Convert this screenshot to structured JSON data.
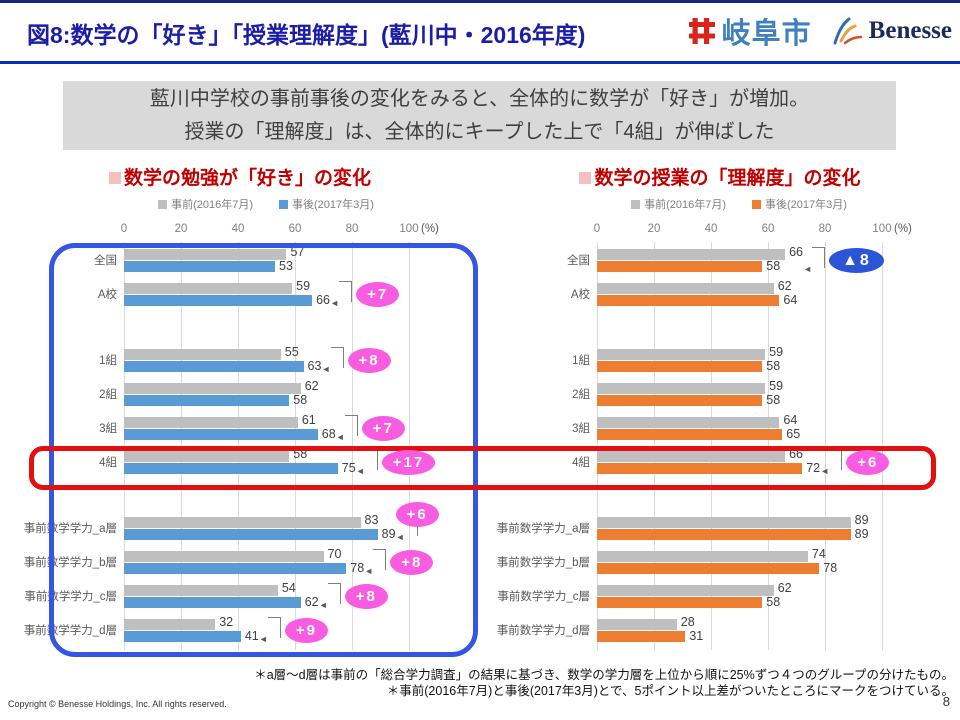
{
  "header": {
    "title": "図8:数学の「好き」「授業理解度」(藍川中・2016年度)",
    "logo_gifu": "岐阜市",
    "logo_benesse": "Benesse"
  },
  "summary": {
    "line1": "藍川中学校の事前事後の変化をみると、全体的に数学が「好き」が増加。",
    "line2": "授業の「理解度」は、全体的にキープした上で「4組」が伸ばした"
  },
  "footnotes": {
    "line1": "＊a層〜d層は事前の「総合学力調査」の結果に基づき、数学の学力層を上位から順に25%ずつ４つのグループの分けたもの。",
    "line2": "＊事前(2016年7月)と事後(2017年3月)とで、5ポイント以上差がついたところにマークをつけている。"
  },
  "page": {
    "copyright": "Copyright © Benesse Holdings, Inc. All rights reserved.",
    "number": "8"
  },
  "colors": {
    "heading_red": "#C00000",
    "bullet_pink": "#F5BFBF",
    "frame_blue": "#3555E3",
    "frame_red": "#E21010",
    "badge_pink": "#F85CE0",
    "badge_blue": "#2B55D6",
    "pre_gray": "#BFBFBF",
    "post_blue": "#5B9BD5",
    "post_orange": "#ED7D31",
    "grid": "#DADADA"
  },
  "chart_data": [
    {
      "type": "bar",
      "orientation": "horizontal",
      "title": "数学の勉強が「好き」の変化",
      "unit": "(%)",
      "xlim": [
        0,
        100
      ],
      "xticks": [
        0,
        20,
        40,
        60,
        80,
        100
      ],
      "grid": true,
      "legend_position": "top",
      "categories": [
        "全国",
        "A校",
        "1組",
        "2組",
        "3組",
        "4組",
        "事前数学学力_a層",
        "事前数学学力_b層",
        "事前数学学力_c層",
        "事前数学学力_d層"
      ],
      "group_breaks": [
        2,
        6
      ],
      "series": [
        {
          "name": "事前(2016年7月)",
          "color": "#BFBFBF",
          "values": [
            57,
            59,
            55,
            62,
            61,
            58,
            83,
            70,
            54,
            32
          ]
        },
        {
          "name": "事後(2017年3月)",
          "color": "#5B9BD5",
          "values": [
            53,
            66,
            63,
            58,
            68,
            75,
            89,
            78,
            62,
            41
          ]
        }
      ],
      "annotations": [
        {
          "category": "A校",
          "text": "+7",
          "style": "pink"
        },
        {
          "category": "1組",
          "text": "+8",
          "style": "pink"
        },
        {
          "category": "3組",
          "text": "+7",
          "style": "pink"
        },
        {
          "category": "4組",
          "text": "+17",
          "style": "pink"
        },
        {
          "category": "事前数学学力_a層",
          "text": "+6",
          "style": "pink",
          "lift": true
        },
        {
          "category": "事前数学学力_b層",
          "text": "+8",
          "style": "pink"
        },
        {
          "category": "事前数学学力_c層",
          "text": "+8",
          "style": "pink"
        },
        {
          "category": "事前数学学力_d層",
          "text": "+9",
          "style": "pink"
        }
      ]
    },
    {
      "type": "bar",
      "orientation": "horizontal",
      "title": "数学の授業の「理解度」の変化",
      "unit": "(%)",
      "xlim": [
        0,
        100
      ],
      "xticks": [
        0,
        20,
        40,
        60,
        80,
        100
      ],
      "grid": true,
      "legend_position": "top",
      "categories": [
        "全国",
        "A校",
        "1組",
        "2組",
        "3組",
        "4組",
        "事前数学学力_a層",
        "事前数学学力_b層",
        "事前数学学力_c層",
        "事前数学学力_d層"
      ],
      "group_breaks": [
        2,
        6
      ],
      "series": [
        {
          "name": "事前(2016年7月)",
          "color": "#BFBFBF",
          "values": [
            66,
            62,
            59,
            59,
            64,
            66,
            89,
            74,
            62,
            28
          ]
        },
        {
          "name": "事後(2017年3月)",
          "color": "#ED7D31",
          "values": [
            58,
            64,
            58,
            58,
            65,
            72,
            89,
            78,
            58,
            31
          ]
        }
      ],
      "annotations": [
        {
          "category": "全国",
          "text": "▲8",
          "style": "blue"
        },
        {
          "category": "4組",
          "text": "+6",
          "style": "pink"
        }
      ]
    }
  ]
}
